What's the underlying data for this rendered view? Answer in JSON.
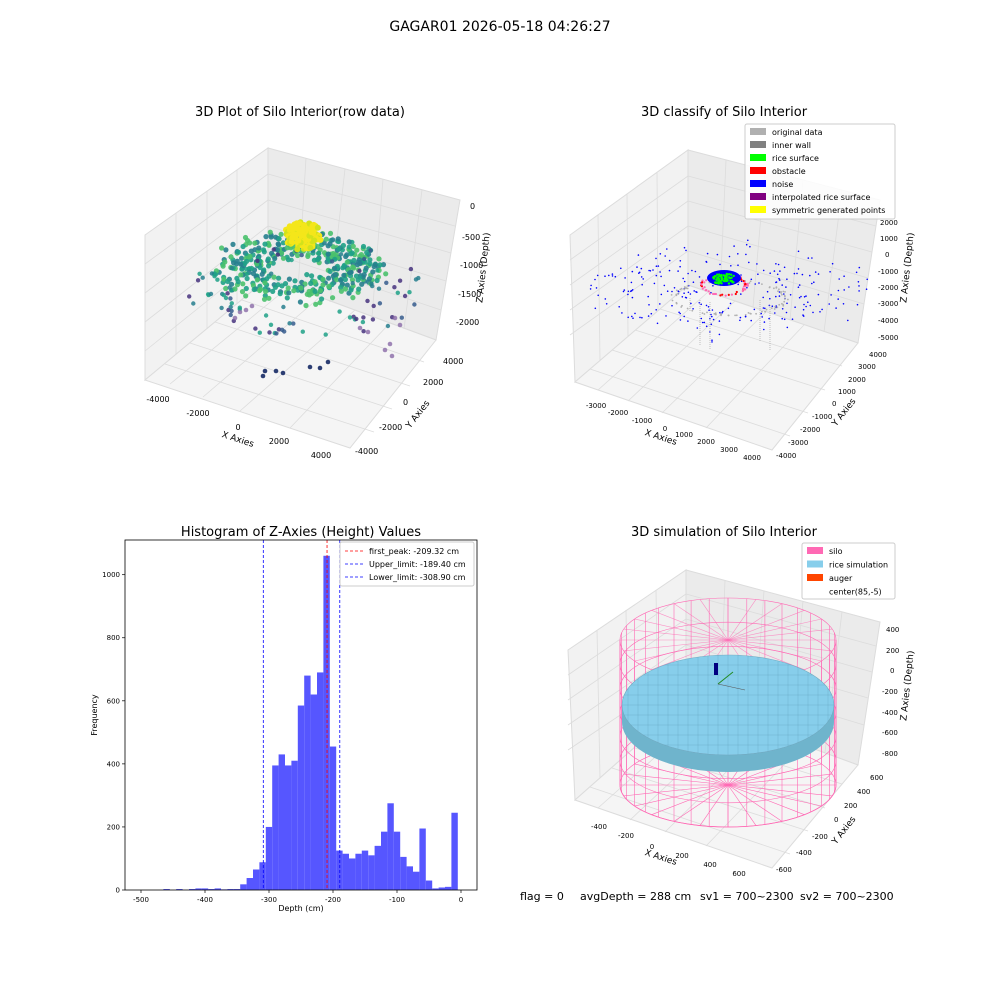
{
  "suptitle": "GAGAR01 2026-05-18 04:26:27",
  "status_line": {
    "flag": "flag = 0",
    "avg": "avgDepth = 288 cm",
    "sv1": "sv1 = 700~2300",
    "sv2": "sv2 = 700~2300"
  },
  "colors": {
    "original": "#b0b0b0",
    "inner_wall": "#808080",
    "rice_surface": "#00ff00",
    "obstacle": "#ff0000",
    "noise": "#0000ff",
    "interpolated": "#800080",
    "symmetric": "#ffff00",
    "silo": "#ff69b4",
    "rice_sim": "#87ceeb",
    "auger": "#ff4500",
    "hist_bar": "#4d4dff",
    "first_peak": "#ff0000",
    "limit": "#0000ff"
  },
  "chart_data": [
    {
      "type": "scatter",
      "subtype": "3d",
      "title": "3D Plot of Silo Interior(row data)",
      "xlabel": "X Axies",
      "ylabel": "Y Axies",
      "zlabel": "Z Axies (Depth)",
      "xticks": [
        "-4000",
        "-2000",
        "0",
        "2000",
        "4000"
      ],
      "yticks": [
        "-4000",
        "-2000",
        "0",
        "2000",
        "4000"
      ],
      "zticks": [
        "0",
        "-500",
        "-1000",
        "-1500",
        "-2000"
      ],
      "colormap": "viridis"
    },
    {
      "type": "scatter",
      "subtype": "3d",
      "title": "3D classify of Silo Interior",
      "xlabel": "X Axies",
      "ylabel": "Y Axies",
      "zlabel": "Z Axies (Depth)",
      "xticks": [
        "-3000",
        "-2000",
        "-1000",
        "0",
        "1000",
        "2000",
        "3000",
        "4000"
      ],
      "yticks": [
        "-4000",
        "-3000",
        "-2000",
        "-1000",
        "0",
        "1000",
        "2000",
        "3000",
        "4000"
      ],
      "zticks": [
        "2000",
        "1000",
        "0",
        "-1000",
        "-2000",
        "-3000",
        "-4000",
        "-5000"
      ],
      "legend": [
        {
          "label": "original data",
          "color": "#b0b0b0"
        },
        {
          "label": "inner wall",
          "color": "#808080"
        },
        {
          "label": "rice surface",
          "color": "#00ff00"
        },
        {
          "label": "obstacle",
          "color": "#ff0000"
        },
        {
          "label": "noise",
          "color": "#0000ff"
        },
        {
          "label": "interpolated rice surface",
          "color": "#800080"
        },
        {
          "label": "symmetric generated points",
          "color": "#ffff00"
        }
      ],
      "legend_loc": "upper right"
    },
    {
      "type": "bar",
      "subtype": "histogram",
      "title": "Histogram of Z-Axies (Height) Values",
      "xlabel": "Depth (cm)",
      "ylabel": "Frequency",
      "xlim": [
        -525,
        25
      ],
      "ylim": [
        0,
        1110
      ],
      "xticks": [
        -500,
        -400,
        -300,
        -200,
        -100,
        0
      ],
      "yticks": [
        0,
        200,
        400,
        600,
        800,
        1000
      ],
      "bin_width": 10,
      "bins": [
        {
          "x": -460,
          "count": 3
        },
        {
          "x": -440,
          "count": 3
        },
        {
          "x": -420,
          "count": 3
        },
        {
          "x": -410,
          "count": 5
        },
        {
          "x": -400,
          "count": 5
        },
        {
          "x": -390,
          "count": 3
        },
        {
          "x": -380,
          "count": 5
        },
        {
          "x": -370,
          "count": 2
        },
        {
          "x": -360,
          "count": 3
        },
        {
          "x": -350,
          "count": 3
        },
        {
          "x": -340,
          "count": 18
        },
        {
          "x": -330,
          "count": 38
        },
        {
          "x": -320,
          "count": 65
        },
        {
          "x": -310,
          "count": 88
        },
        {
          "x": -300,
          "count": 200
        },
        {
          "x": -290,
          "count": 395
        },
        {
          "x": -280,
          "count": 430
        },
        {
          "x": -270,
          "count": 395
        },
        {
          "x": -260,
          "count": 410
        },
        {
          "x": -250,
          "count": 585
        },
        {
          "x": -240,
          "count": 680
        },
        {
          "x": -230,
          "count": 620
        },
        {
          "x": -220,
          "count": 690
        },
        {
          "x": -210,
          "count": 1060
        },
        {
          "x": -200,
          "count": 455
        },
        {
          "x": -190,
          "count": 125
        },
        {
          "x": -180,
          "count": 115
        },
        {
          "x": -170,
          "count": 100
        },
        {
          "x": -160,
          "count": 115
        },
        {
          "x": -150,
          "count": 125
        },
        {
          "x": -140,
          "count": 110
        },
        {
          "x": -130,
          "count": 140
        },
        {
          "x": -120,
          "count": 185
        },
        {
          "x": -110,
          "count": 275
        },
        {
          "x": -100,
          "count": 185
        },
        {
          "x": -90,
          "count": 105
        },
        {
          "x": -80,
          "count": 75
        },
        {
          "x": -70,
          "count": 58
        },
        {
          "x": -60,
          "count": 195
        },
        {
          "x": -50,
          "count": 30
        },
        {
          "x": -40,
          "count": 5
        },
        {
          "x": -30,
          "count": 8
        },
        {
          "x": -20,
          "count": 10
        },
        {
          "x": -10,
          "count": 245
        }
      ],
      "vlines": [
        {
          "x": -209.32,
          "label": "first_peak: -209.32 cm",
          "color": "#ff0000"
        },
        {
          "x": -189.4,
          "label": "Upper_limit: -189.40 cm",
          "color": "#0000ff"
        },
        {
          "x": -308.9,
          "label": "Lower_limit: -308.90 cm",
          "color": "#0000ff"
        }
      ],
      "legend_loc": "upper right"
    },
    {
      "type": "scatter",
      "subtype": "3d-surface",
      "title": "3D simulation of Silo Interior",
      "xlabel": "X Axies",
      "ylabel": "Y Axies",
      "zlabel": "Z Axies (Depth)",
      "xticks": [
        "-400",
        "-200",
        "0",
        "200",
        "400",
        "600"
      ],
      "yticks": [
        "-600",
        "-400",
        "-200",
        "0",
        "200",
        "400",
        "600"
      ],
      "zticks": [
        "400",
        "200",
        "0",
        "-200",
        "-400",
        "-600",
        "-800"
      ],
      "legend": [
        {
          "label": "silo",
          "color": "#ff69b4"
        },
        {
          "label": "rice simulation",
          "color": "#87ceeb"
        },
        {
          "label": "auger",
          "color": "#ff4500"
        },
        {
          "label": "center(85,-5)",
          "color": "#ffffff"
        }
      ],
      "legend_loc": "upper right"
    }
  ]
}
